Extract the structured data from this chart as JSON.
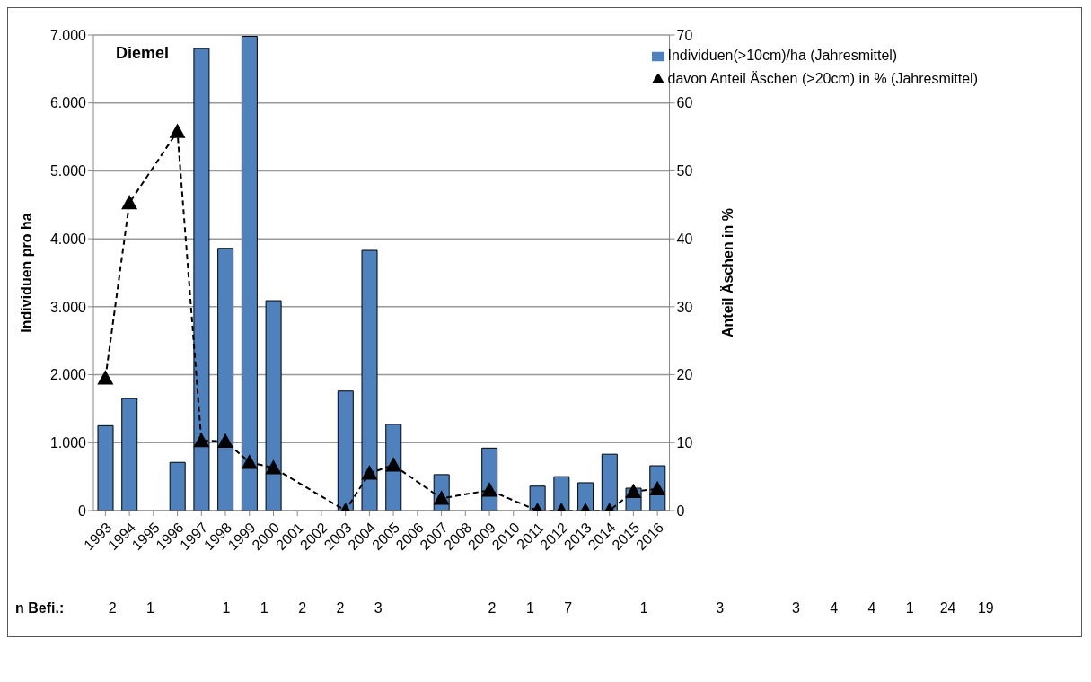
{
  "chart_data": {
    "type": "bar",
    "title": "Diemel",
    "ylabel": "Individuen pro ha",
    "y2label": "Anteil Äschen in %",
    "categories": [
      "1993",
      "1994",
      "1995",
      "1996",
      "1997",
      "1998",
      "1999",
      "2000",
      "2001",
      "2002",
      "2003",
      "2004",
      "2005",
      "2006",
      "2007",
      "2008",
      "2009",
      "2010",
      "2011",
      "2012",
      "2013",
      "2014",
      "2015",
      "2016"
    ],
    "series": [
      {
        "name": "Individuen(>10cm)/ha (Jahresmittel)",
        "color": "#4f81bd",
        "values": [
          1250,
          1650,
          null,
          710,
          6800,
          3860,
          6980,
          3090,
          null,
          null,
          1760,
          3830,
          1270,
          null,
          530,
          null,
          920,
          null,
          360,
          500,
          410,
          830,
          330,
          660
        ]
      },
      {
        "name": "davon Anteil Äschen (>20cm) in % (Jahresmittel)",
        "type": "line",
        "axis": "y2",
        "color": "#000000",
        "values": [
          19.5,
          45.3,
          null,
          55.8,
          10.3,
          10.2,
          7.1,
          6.3,
          null,
          null,
          0,
          5.5,
          6.7,
          null,
          1.8,
          null,
          3,
          null,
          0,
          0,
          0,
          0,
          2.8,
          3.2
        ]
      }
    ],
    "ylim": [
      0,
      7000
    ],
    "yticks": [
      0,
      {
        "value": 1000,
        "label": "1.000"
      },
      {
        "value": 2000,
        "label": "2.000"
      },
      {
        "value": 3000,
        "label": "3.000"
      },
      {
        "value": 4000,
        "label": "4.000"
      },
      {
        "value": 5000,
        "label": "5.000"
      },
      {
        "value": 6000,
        "label": "6.000"
      },
      {
        "value": 7000,
        "label": "7.000"
      }
    ],
    "y2lim": [
      0,
      70
    ],
    "y2ticks": [
      0,
      10,
      20,
      30,
      40,
      50,
      60,
      70
    ],
    "grid": "y",
    "legend": "top right",
    "marker": "triangle",
    "line_style": "dashed",
    "annotations": [
      "n Befi.:",
      "2",
      "1",
      "1",
      "1",
      "2",
      "2",
      "3",
      "2",
      "1",
      "7",
      "1",
      "3",
      "3",
      "4",
      "4",
      "1",
      "24",
      "19"
    ]
  }
}
